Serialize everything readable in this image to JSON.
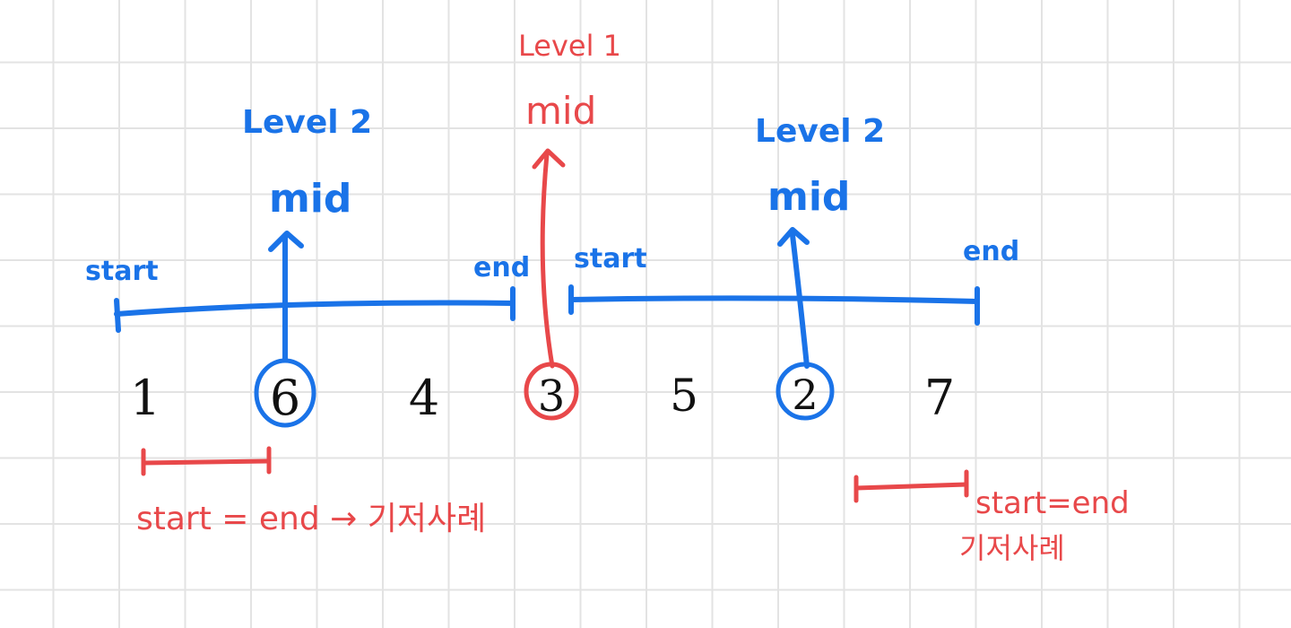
{
  "colors": {
    "blue": "#1a73e8",
    "red": "#e8484a",
    "ink": "#111111",
    "grid": "#e3e3e3"
  },
  "array": [
    "1",
    "6",
    "4",
    "3",
    "5",
    "2",
    "7"
  ],
  "top": {
    "level": "Level 1",
    "mid": "mid"
  },
  "left": {
    "level": "Level 2",
    "mid": "mid",
    "start": "start",
    "end": "end"
  },
  "right": {
    "level": "Level 2",
    "mid": "mid",
    "start": "start",
    "end": "end"
  },
  "base_left": {
    "line1": "start = end → 기저사례"
  },
  "base_right": {
    "line1": "start=end",
    "line2": "기저사례"
  }
}
